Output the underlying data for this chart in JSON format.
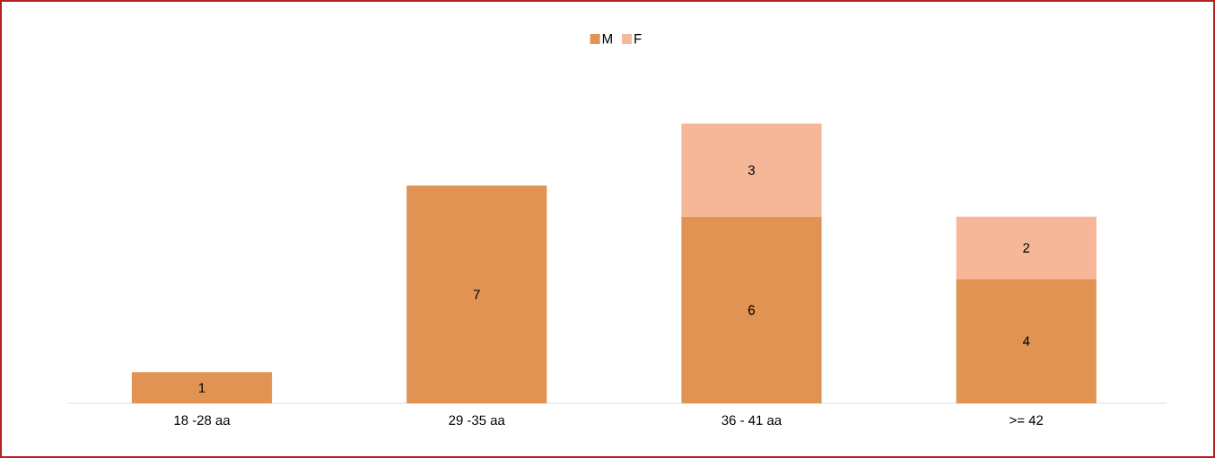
{
  "chart_data": {
    "type": "bar",
    "stacked": true,
    "categories": [
      "18 -28 aa",
      "29 -35 aa",
      "36 - 41 aa",
      ">= 42"
    ],
    "series": [
      {
        "name": "M",
        "color": "#e09352",
        "values": [
          1,
          7,
          6,
          4
        ]
      },
      {
        "name": "F",
        "color": "#f6b799",
        "values": [
          null,
          null,
          3,
          2
        ]
      }
    ],
    "data_labels": true,
    "legend": "top"
  }
}
